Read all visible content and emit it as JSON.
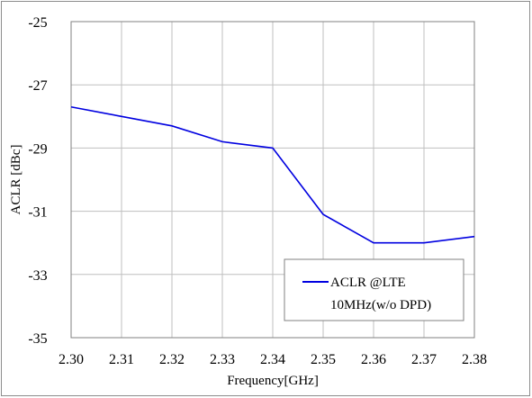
{
  "chart_data": {
    "type": "line",
    "xlabel": "Frequency[GHz]",
    "ylabel": "ACLR [dBc]",
    "xlim": [
      2.3,
      2.38
    ],
    "ylim": [
      -35,
      -25
    ],
    "x_ticks": [
      "2.30",
      "2.31",
      "2.32",
      "2.33",
      "2.34",
      "2.35",
      "2.36",
      "2.37",
      "2.38"
    ],
    "y_ticks": [
      "-25",
      "-27",
      "-29",
      "-31",
      "-33",
      "-35"
    ],
    "grid": true,
    "legend_position": "bottom-right",
    "series": [
      {
        "name": "ACLR @LTE 10MHz(w/o DPD)",
        "legend_lines": [
          "ACLR @LTE",
          "10MHz(w/o DPD)"
        ],
        "color": "#0000e0",
        "x": [
          2.3,
          2.31,
          2.32,
          2.33,
          2.34,
          2.35,
          2.36,
          2.37,
          2.38
        ],
        "y": [
          -27.7,
          -28.0,
          -28.3,
          -28.8,
          -29.0,
          -31.1,
          -32.0,
          -32.0,
          -31.8
        ]
      }
    ]
  }
}
